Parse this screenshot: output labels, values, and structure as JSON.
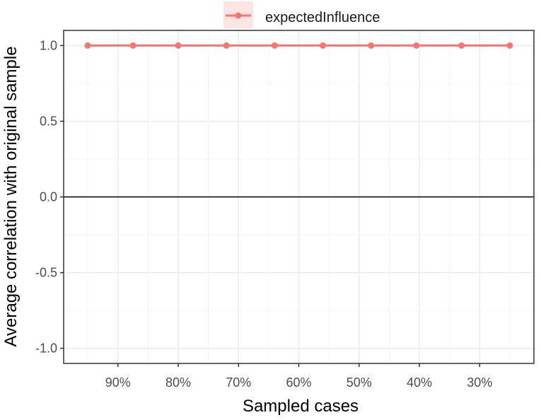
{
  "chart_data": {
    "type": "line",
    "x": [
      "95%",
      "87.5%",
      "80%",
      "72%",
      "64%",
      "56%",
      "48%",
      "40.5%",
      "33%",
      "25%"
    ],
    "series": [
      {
        "name": "expectedInfluence",
        "values": [
          1.0,
          1.0,
          1.0,
          1.0,
          1.0,
          1.0,
          1.0,
          1.0,
          1.0,
          1.0
        ]
      }
    ],
    "xlim": [
      99,
      21
    ],
    "ylim": [
      -1.1,
      1.1
    ],
    "x_ticks": [
      90,
      80,
      70,
      60,
      50,
      40,
      30
    ],
    "x_tick_labels": [
      "90%",
      "80%",
      "70%",
      "60%",
      "50%",
      "40%",
      "30%"
    ],
    "y_ticks": [
      -1.0,
      -0.5,
      0.0,
      0.5,
      1.0
    ],
    "y_tick_labels": [
      "-1.0",
      "-0.5",
      "0.0",
      "0.5",
      "1.0"
    ],
    "xlabel": "Sampled cases",
    "ylabel": "Average correlation with original sample",
    "reference_line_y": 0.0,
    "legend_position": "top",
    "grid": true,
    "colors": {
      "series": "#f8766d",
      "legend_key_background": "#fbe4e2",
      "panel_border": "#333333",
      "grid_major": "#ebebeb",
      "grid_minor": "#f5f5f5",
      "reference_line": "#000000"
    }
  }
}
